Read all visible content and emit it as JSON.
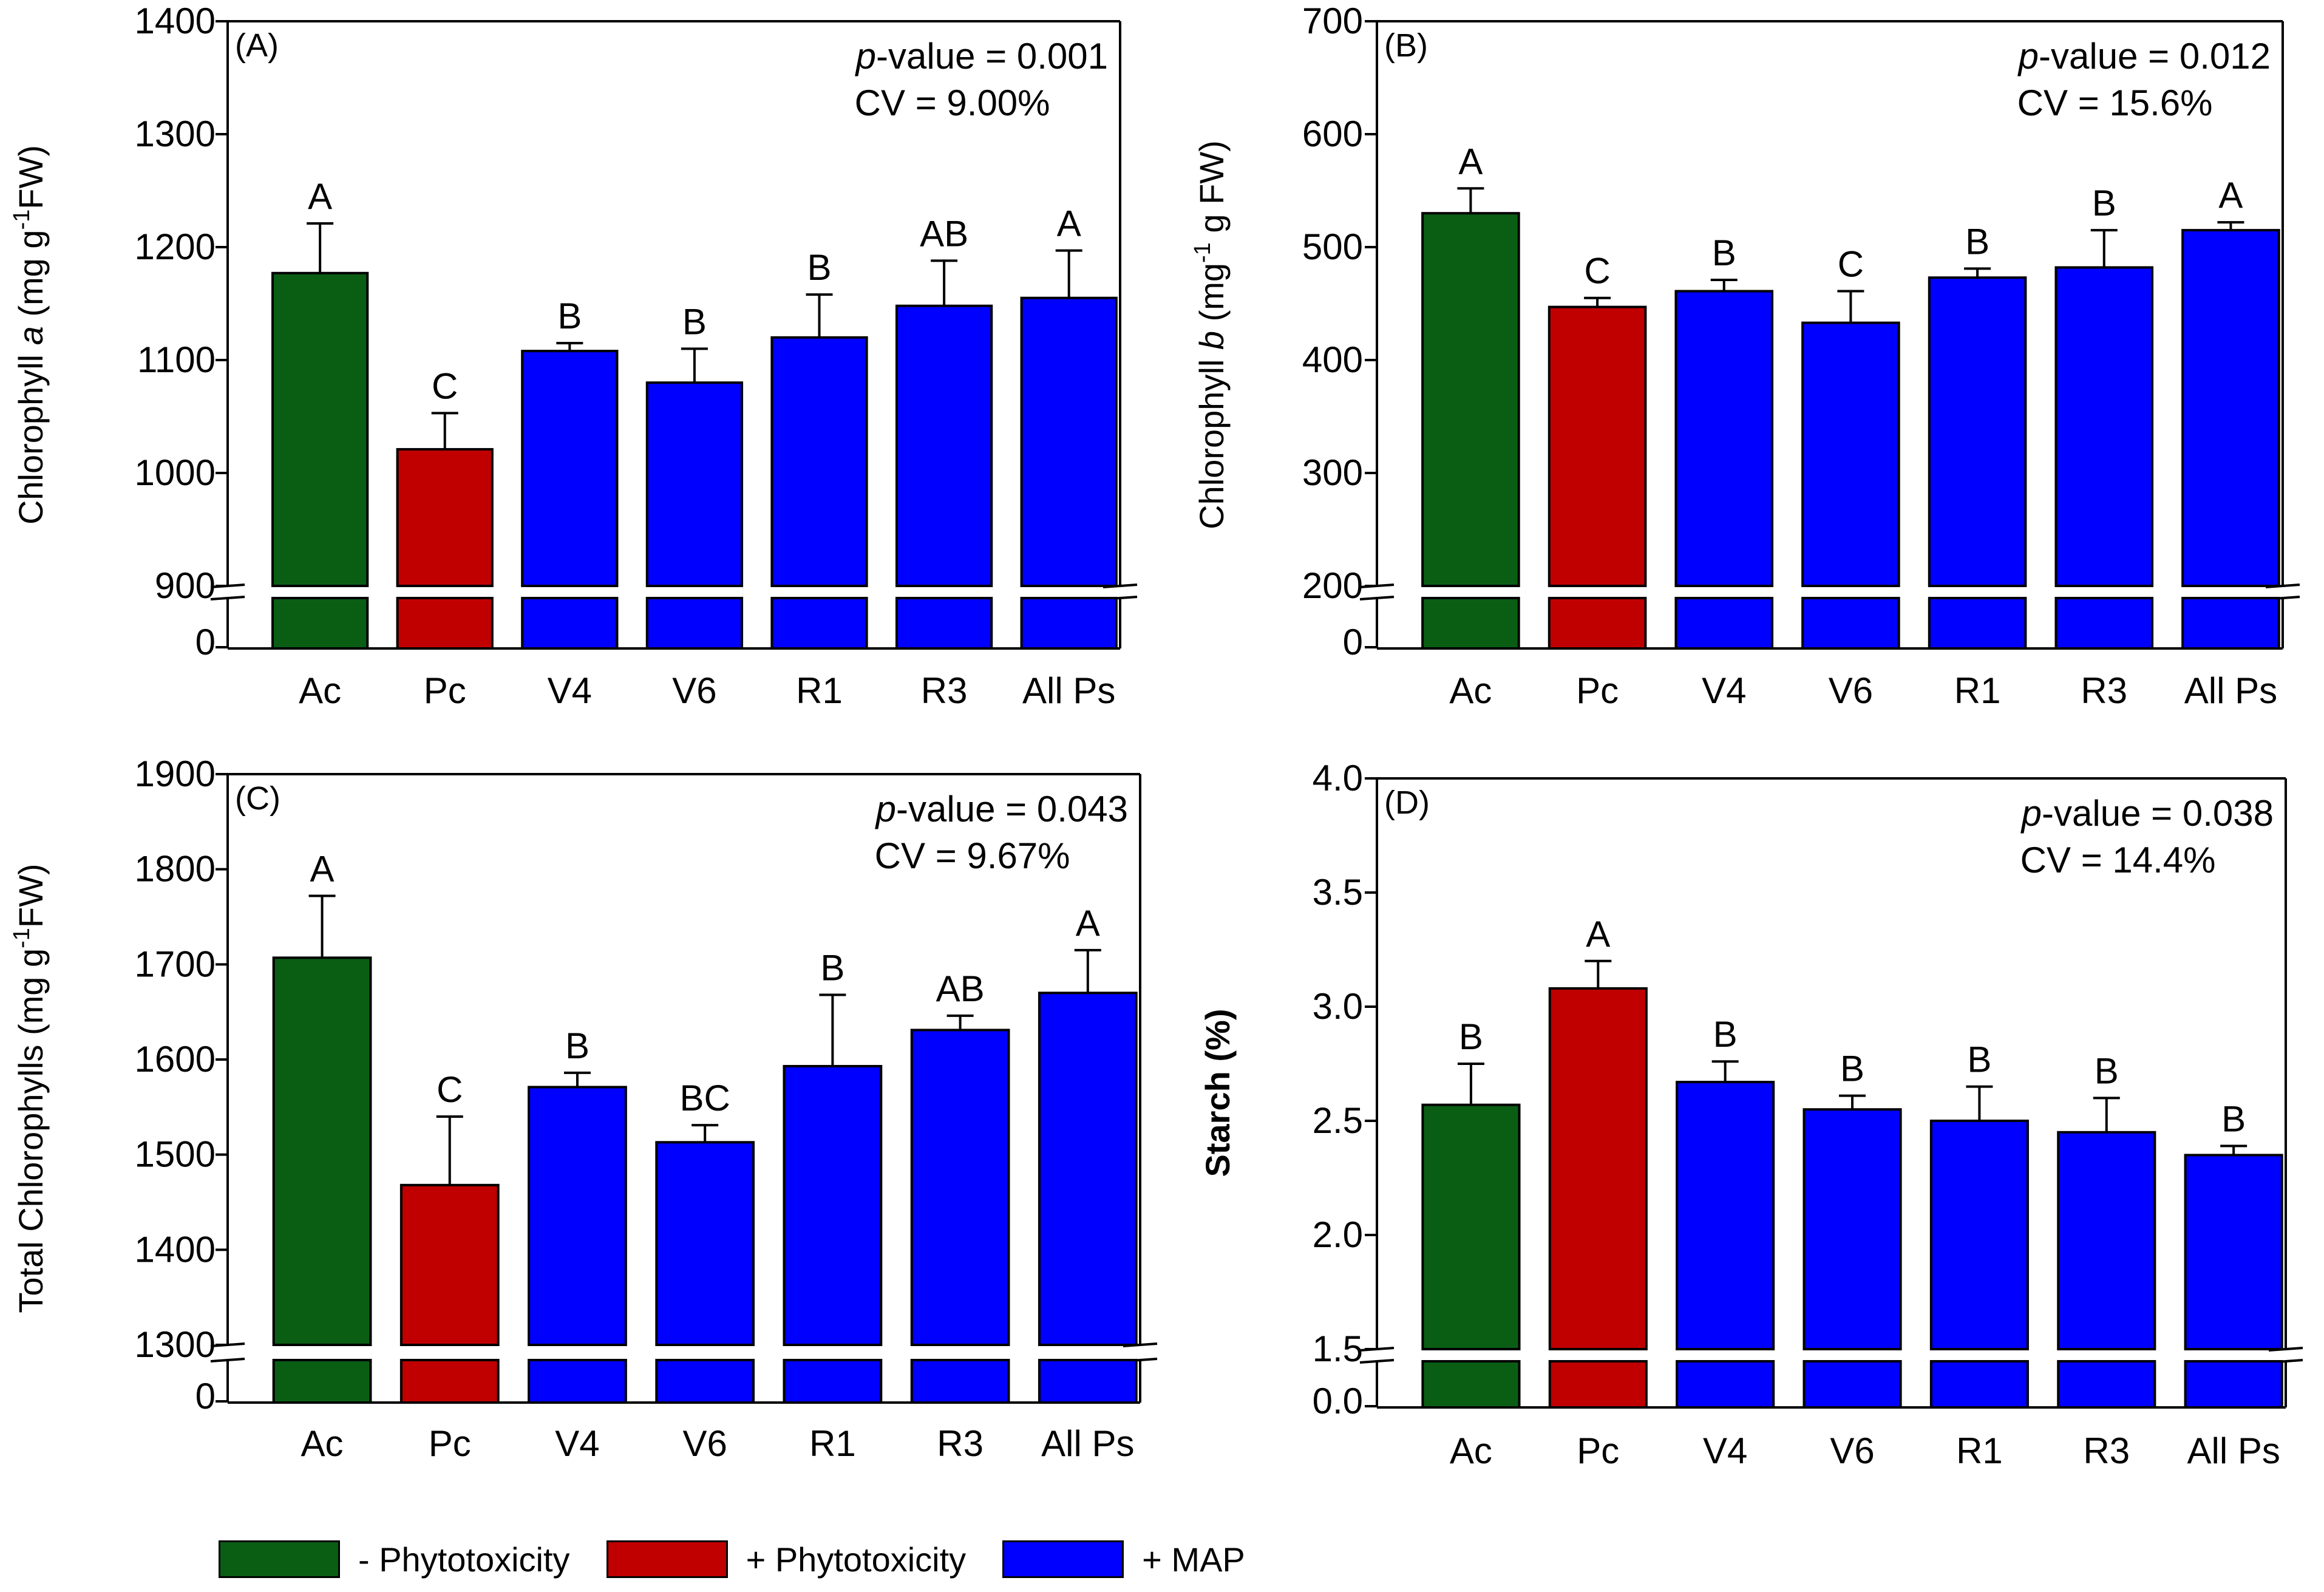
{
  "colors": {
    "phyto_neg": "#0a5e14",
    "phyto_pos": "#c00000",
    "map": "#0000ff"
  },
  "legend": [
    {
      "label": "- Phytotoxicity",
      "color": "#0a5e14"
    },
    {
      "label": "+ Phytotoxicity",
      "color": "#c00000"
    },
    {
      "label": "+ MAP",
      "color": "#0000ff"
    }
  ],
  "chart_data": [
    {
      "type": "bar",
      "panel_label": "(A)",
      "stats": {
        "p_label": "p",
        "p_rest": "-value = 0.001",
        "cv": "CV = 9.00%"
      },
      "categories": [
        "Ac",
        "Pc",
        "V4",
        "V6",
        "R1",
        "R3",
        "All Ps"
      ],
      "values": [
        1177,
        1021,
        1108,
        1080,
        1120,
        1148,
        1155
      ],
      "errors": [
        44,
        32,
        7,
        30,
        38,
        40,
        42
      ],
      "letters": [
        "A",
        "C",
        "B",
        "B",
        "B",
        "AB",
        "A"
      ],
      "groups": [
        "phyto_neg",
        "phyto_pos",
        "map",
        "map",
        "map",
        "map",
        "map"
      ],
      "ylabel": "Chlorophyll a (mg g⁻¹FW)",
      "ylabel_parts": {
        "pre": "Chlorophyll ",
        "ital": "a",
        "mid": " (mg g",
        "sup": "-1",
        "post": "FW)"
      },
      "ylim": [
        900,
        1400
      ],
      "yticks": [
        900,
        1000,
        1100,
        1200,
        1300,
        1400
      ],
      "axis_break": {
        "lower_tick": 0,
        "lower_tick_label": "0"
      }
    },
    {
      "type": "bar",
      "panel_label": "(B)",
      "stats": {
        "p_label": "p",
        "p_rest": "-value = 0.012",
        "cv": "CV = 15.6%"
      },
      "categories": [
        "Ac",
        "Pc",
        "V4",
        "V6",
        "R1",
        "R3",
        "All Ps"
      ],
      "values": [
        530,
        447,
        461,
        433,
        473,
        482,
        515
      ],
      "errors": [
        22,
        8,
        10,
        28,
        8,
        33,
        7
      ],
      "letters": [
        "A",
        "C",
        "B",
        "C",
        "B",
        "B",
        "A"
      ],
      "groups": [
        "phyto_neg",
        "phyto_pos",
        "map",
        "map",
        "map",
        "map",
        "map"
      ],
      "ylabel": "Chlorophyll b (mg⁻¹ g FW)",
      "ylabel_parts": {
        "pre": "Chlorophyll ",
        "ital": "b",
        "mid": " (mg",
        "sup": "-1",
        "post": " g FW)"
      },
      "ylim": [
        200,
        700
      ],
      "yticks": [
        200,
        300,
        400,
        500,
        600,
        700
      ],
      "axis_break": {
        "lower_tick": 0,
        "lower_tick_label": "0"
      }
    },
    {
      "type": "bar",
      "panel_label": "(C)",
      "stats": {
        "p_label": "p",
        "p_rest": "-value = 0.043",
        "cv": "CV = 9.67%"
      },
      "categories": [
        "Ac",
        "Pc",
        "V4",
        "V6",
        "R1",
        "R3",
        "All Ps"
      ],
      "values": [
        1707,
        1468,
        1571,
        1513,
        1593,
        1631,
        1670
      ],
      "errors": [
        65,
        72,
        15,
        18,
        75,
        15,
        45
      ],
      "letters": [
        "A",
        "C",
        "B",
        "BC",
        "B",
        "AB",
        "A"
      ],
      "groups": [
        "phyto_neg",
        "phyto_pos",
        "map",
        "map",
        "map",
        "map",
        "map"
      ],
      "ylabel": "Total Chlorophylls (mg g⁻¹FW)",
      "ylabel_parts": {
        "pre": "Total Chlorophylls (mg g",
        "ital": "",
        "mid": "",
        "sup": "-1",
        "post": "FW)"
      },
      "ylim": [
        1300,
        1900
      ],
      "yticks": [
        1300,
        1400,
        1500,
        1600,
        1700,
        1800,
        1900
      ],
      "axis_break": {
        "lower_tick": 0,
        "lower_tick_label": "0"
      }
    },
    {
      "type": "bar",
      "panel_label": "(D)",
      "stats": {
        "p_label": "p",
        "p_rest": "-value = 0.038",
        "cv": "CV = 14.4%"
      },
      "categories": [
        "Ac",
        "Pc",
        "V4",
        "V6",
        "R1",
        "R3",
        "All Ps"
      ],
      "values": [
        2.57,
        3.08,
        2.67,
        2.55,
        2.5,
        2.45,
        2.35
      ],
      "errors": [
        0.18,
        0.12,
        0.09,
        0.06,
        0.15,
        0.15,
        0.04
      ],
      "letters": [
        "B",
        "A",
        "B",
        "B",
        "B",
        "B",
        "B"
      ],
      "groups": [
        "phyto_neg",
        "phyto_pos",
        "map",
        "map",
        "map",
        "map",
        "map"
      ],
      "ylabel": "Starch (%)",
      "ylabel_parts": {
        "pre": "Starch (%)",
        "ital": "",
        "mid": "",
        "sup": "",
        "post": ""
      },
      "ylabel_bold": true,
      "ylim": [
        1.5,
        4.0
      ],
      "yticks": [
        1.5,
        2.0,
        2.5,
        3.0,
        3.5,
        4.0
      ],
      "ytick_labels": [
        "1.5",
        "2.0",
        "2.5",
        "3.0",
        "3.5",
        "4.0"
      ],
      "axis_break": {
        "lower_tick": 0,
        "lower_tick_label": "0.0"
      }
    }
  ]
}
